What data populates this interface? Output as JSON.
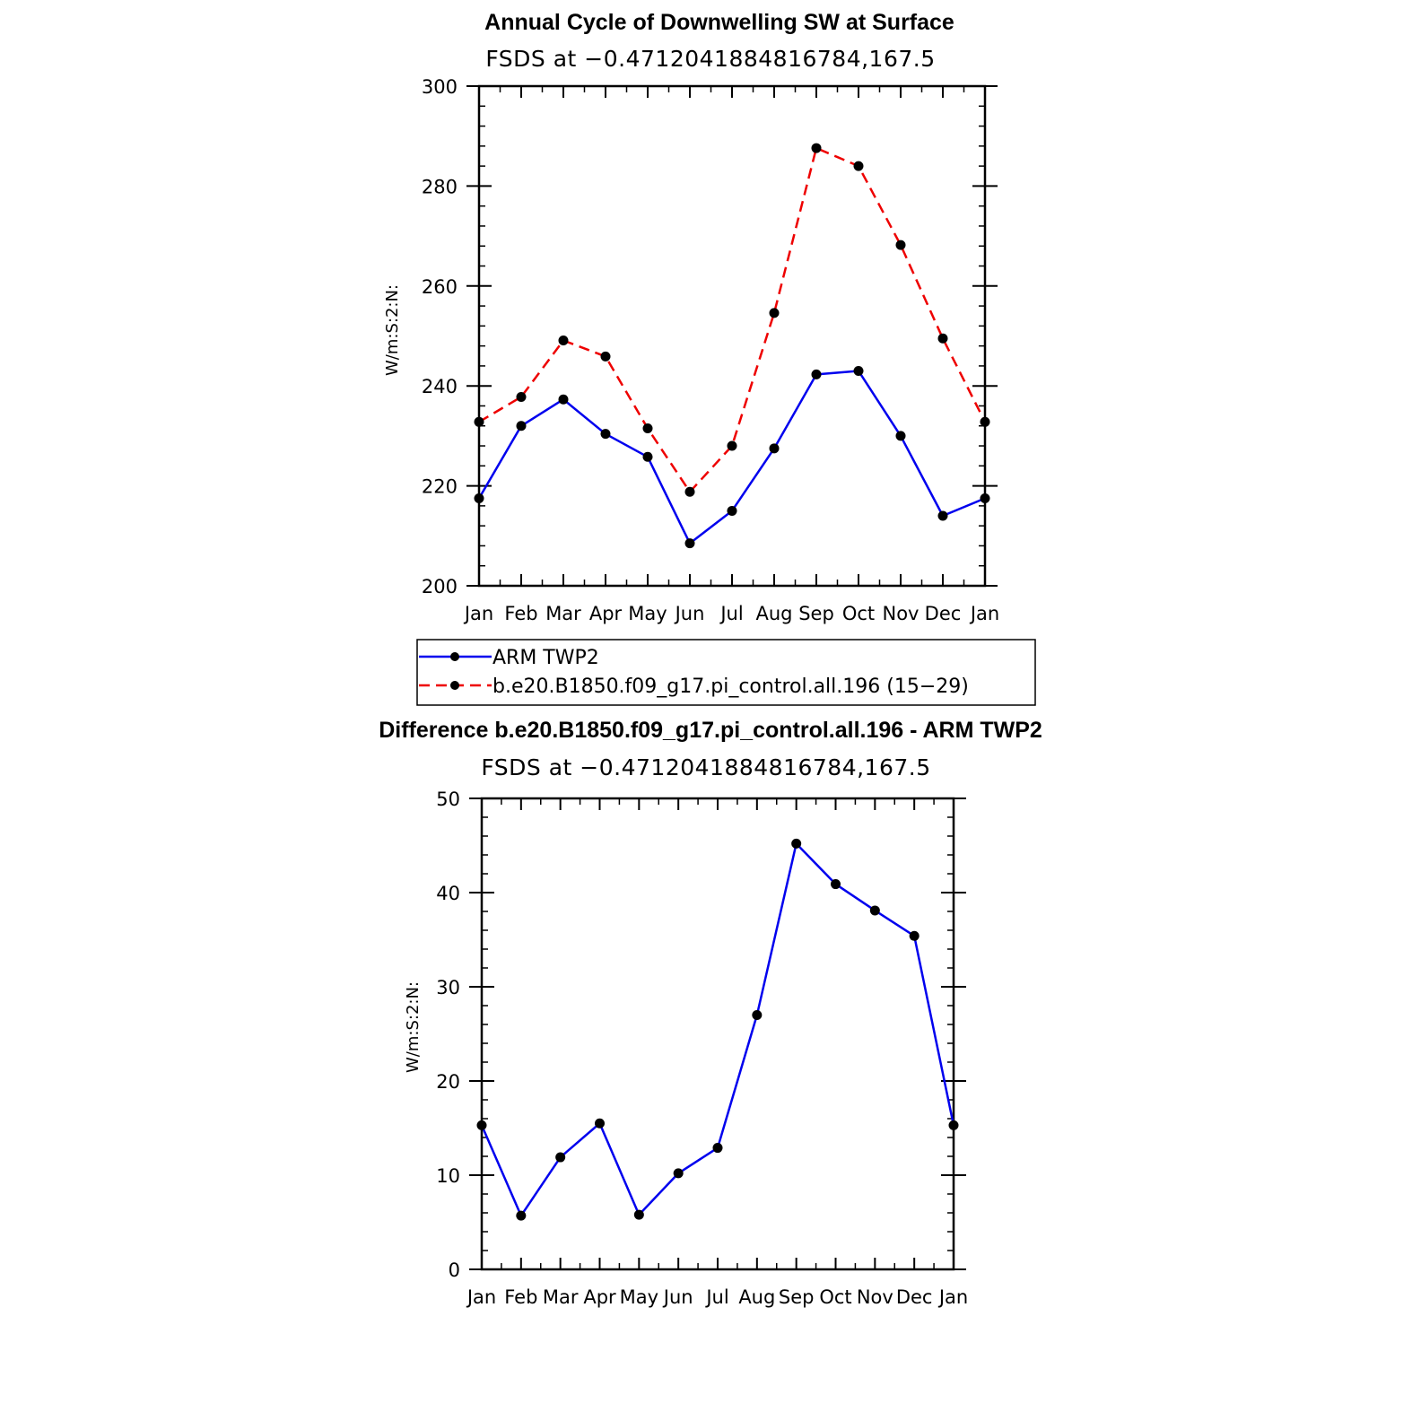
{
  "chart_data": [
    {
      "type": "line",
      "title": "Annual Cycle of Downwelling SW at Surface",
      "subtitle": "FSDS at −0.4712041884816784,167.5",
      "xlabel": "",
      "ylabel": "W/m:S:2:N:",
      "categories": [
        "Jan",
        "Feb",
        "Mar",
        "Apr",
        "May",
        "Jun",
        "Jul",
        "Aug",
        "Sep",
        "Oct",
        "Nov",
        "Dec",
        "Jan"
      ],
      "ylim": [
        200,
        300
      ],
      "yticks": [
        200,
        220,
        240,
        260,
        280,
        300
      ],
      "grid": false,
      "legend_position": "below",
      "series": [
        {
          "name": "ARM TWP2",
          "color": "#0000ee",
          "dash": "solid",
          "values": [
            217.5,
            232,
            237.3,
            230.4,
            225.8,
            208.5,
            215,
            227.5,
            242.3,
            243,
            230,
            214,
            217.5
          ]
        },
        {
          "name": "b.e20.B1850.f09_g17.pi_control.all.196 (15−29)",
          "color": "#ee0000",
          "dash": "dashed",
          "values": [
            232.8,
            237.8,
            249.1,
            245.9,
            231.5,
            218.8,
            228,
            254.6,
            287.6,
            284,
            268.2,
            249.5,
            232.8
          ]
        }
      ]
    },
    {
      "type": "line",
      "title": "Difference b.e20.B1850.f09_g17.pi_control.all.196 - ARM TWP2",
      "subtitle": "FSDS at −0.4712041884816784,167.5",
      "xlabel": "",
      "ylabel": "W/m:S:2:N:",
      "categories": [
        "Jan",
        "Feb",
        "Mar",
        "Apr",
        "May",
        "Jun",
        "Jul",
        "Aug",
        "Sep",
        "Oct",
        "Nov",
        "Dec",
        "Jan"
      ],
      "ylim": [
        0,
        50
      ],
      "yticks": [
        0,
        10,
        20,
        30,
        40,
        50
      ],
      "grid": false,
      "series": [
        {
          "color": "#0000ee",
          "dash": "solid",
          "values": [
            15.3,
            5.7,
            11.9,
            15.5,
            5.8,
            10.2,
            12.9,
            27.0,
            45.2,
            40.9,
            38.1,
            35.4,
            15.3
          ]
        }
      ]
    }
  ]
}
